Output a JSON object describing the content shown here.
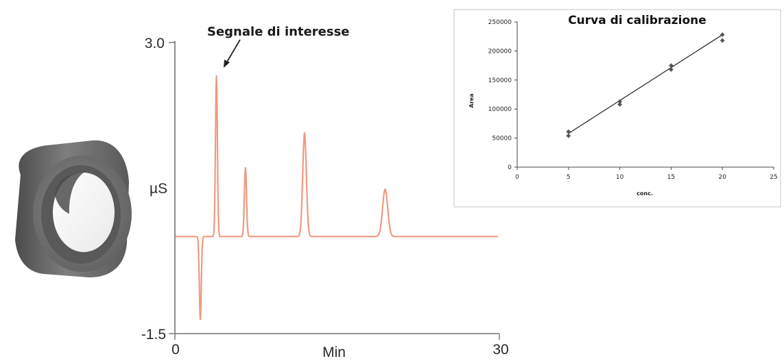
{
  "chart_data": [
    {
      "type": "line",
      "annotation": "Segnale di interesse",
      "xlabel": "Min",
      "ylabel": "µS",
      "xlim": [
        0,
        30
      ],
      "ylim": [
        -1.5,
        3.0
      ],
      "x_tick_labels": [
        "0",
        "30"
      ],
      "y_tick_labels": [
        "3.0",
        "-1.5"
      ],
      "baseline": 0.0,
      "line_color": "#f0997f",
      "peaks": [
        {
          "time": 2.3,
          "height": -1.28
        },
        {
          "time": 3.8,
          "height": 2.48
        },
        {
          "time": 6.5,
          "height": 1.06
        },
        {
          "time": 12.0,
          "height": 1.6
        },
        {
          "time": 19.5,
          "height": 0.73
        }
      ]
    },
    {
      "type": "scatter",
      "title": "Curva di calibrazione",
      "xlabel": "conc.",
      "ylabel": "Area",
      "xlim": [
        0,
        25
      ],
      "ylim": [
        0,
        250000
      ],
      "x_ticks": [
        0,
        5,
        10,
        15,
        20,
        25
      ],
      "y_ticks": [
        0,
        50000,
        100000,
        150000,
        200000,
        250000
      ],
      "point_color": "#555555",
      "trendline": {
        "x": [
          5,
          20
        ],
        "y": [
          58000,
          228000
        ]
      },
      "points": [
        {
          "x": 5,
          "y": 54000
        },
        {
          "x": 5,
          "y": 61000
        },
        {
          "x": 10,
          "y": 108000
        },
        {
          "x": 10,
          "y": 113000
        },
        {
          "x": 15,
          "y": 168000
        },
        {
          "x": 15,
          "y": 175000
        },
        {
          "x": 20,
          "y": 218000
        },
        {
          "x": 20,
          "y": 228000
        }
      ]
    }
  ],
  "device_icon": "cylindrical-ring-cartridge-icon"
}
